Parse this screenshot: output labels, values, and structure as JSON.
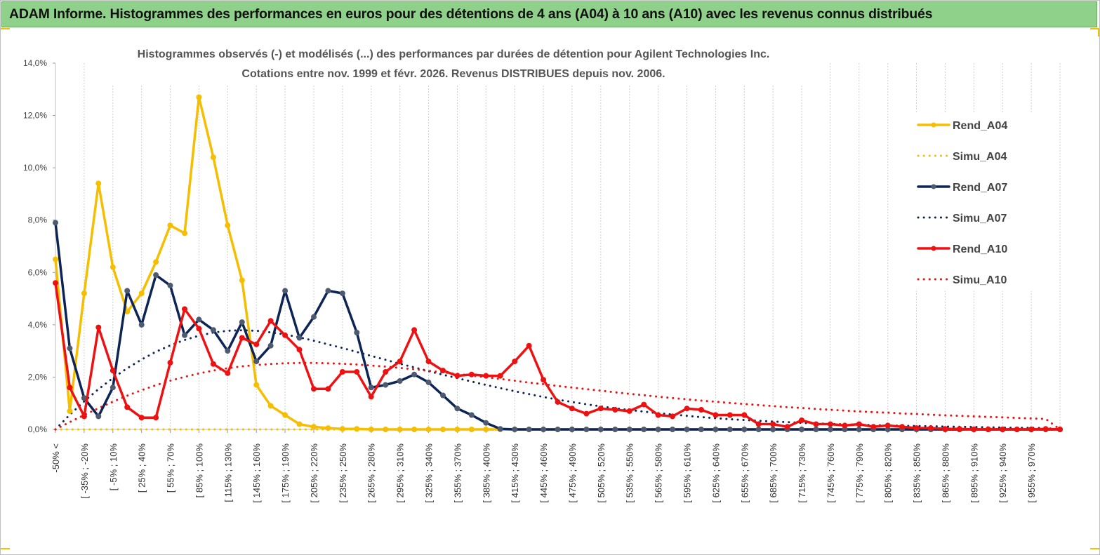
{
  "header": {
    "title": "ADAM Informe. Histogrammes des performances en euros pour des détentions de 4 ans (A04) à 10 ans (A10) avec les revenus connus distribués"
  },
  "colors": {
    "banner": "#8fd18a",
    "A04": "#f5be00",
    "A07": "#0d2456",
    "A10": "#ee1111",
    "marker07": "#4d5a70"
  },
  "chart_data": {
    "type": "line",
    "title_lines": [
      "Histogrammes observés (-) et modélisés (...) des performances par durées de détention pour Agilent Technologies Inc.",
      "Cotations entre nov. 1999 et févr. 2026. Revenus DISTRIBUES depuis nov. 2006."
    ],
    "xlabel": "",
    "ylabel": "",
    "ylim": [
      0,
      14
    ],
    "yticks": [
      "0,0%",
      "2,0%",
      "4,0%",
      "6,0%",
      "8,0%",
      "10,0%",
      "12,0%",
      "14,0%"
    ],
    "grid": true,
    "legend_position": "right",
    "x_labels": [
      "-50% <",
      "[ -35% ; -20%",
      "[ -5% ; 10%",
      "[ 25% ; 40%",
      "[ 55% ; 70%",
      "[ 85% ; 100%",
      "[ 115% ; 130%",
      "[ 145% ; 160%",
      "[ 175% ; 190%",
      "[ 205% ; 220%",
      "[ 235% ; 250%",
      "[ 265% ; 280%",
      "[ 295% ; 310%",
      "[ 325% ; 340%",
      "[ 355% ; 370%",
      "[ 385% ; 400%",
      "[ 415% ; 430%",
      "[ 445% ; 460%",
      "[ 475% ; 490%",
      "[ 505% ; 520%",
      "[ 535% ; 550%",
      "[ 565% ; 580%",
      "[ 595% ; 610%",
      "[ 625% ; 640%",
      "[ 655% ; 670%",
      "[ 685% ; 700%",
      "[ 715% ; 730%",
      "[ 745% ; 760%",
      "[ 775% ; 790%",
      "[ 805% ; 820%",
      "[ 835% ; 850%",
      "[ 865% ; 880%",
      "[ 895% ; 910%",
      "[ 925% ; 940%",
      "[ 955% ; 970%"
    ],
    "series": [
      {
        "name": "Rend_A04",
        "style": "solid",
        "color": "#f5be00",
        "values": [
          6.5,
          0.7,
          5.2,
          9.4,
          6.2,
          4.5,
          5.2,
          6.4,
          7.8,
          7.5,
          12.7,
          10.4,
          7.8,
          5.7,
          1.7,
          0.9,
          0.55,
          0.2,
          0.1,
          0.05,
          0.02,
          0.02,
          0,
          0,
          0,
          0,
          0,
          0,
          0,
          0,
          0,
          0,
          0,
          0,
          0,
          0,
          0,
          0,
          0,
          0,
          0,
          0,
          0,
          0,
          0,
          0,
          0,
          0,
          0,
          0,
          0,
          0,
          0,
          0,
          0,
          0,
          0,
          0,
          0,
          0,
          0,
          0,
          0,
          0,
          0,
          0,
          0,
          0,
          0,
          0,
          0
        ]
      },
      {
        "name": "Simu_A04",
        "style": "dotted",
        "color": "#f5be00",
        "values": [
          0,
          0,
          0,
          0,
          0,
          0,
          0,
          0,
          0,
          0,
          0,
          0,
          0,
          0,
          0,
          0,
          0,
          0,
          0,
          0,
          0,
          0,
          0,
          0,
          0,
          0,
          0,
          0,
          0,
          0,
          0,
          0,
          0,
          0,
          0,
          0,
          0,
          0,
          0,
          0,
          0,
          0,
          0,
          0,
          0,
          0,
          0,
          0,
          0,
          0,
          0,
          0,
          0,
          0,
          0,
          0,
          0,
          0,
          0,
          0,
          0,
          0,
          0,
          0,
          0,
          0,
          0,
          0,
          0,
          0,
          0
        ]
      },
      {
        "name": "Rend_A07",
        "style": "solid",
        "color": "#0d2456",
        "values": [
          7.9,
          3.1,
          1.2,
          0.5,
          1.6,
          5.3,
          4.0,
          5.9,
          5.5,
          3.6,
          4.2,
          3.8,
          3.0,
          4.1,
          2.6,
          3.2,
          5.3,
          3.5,
          4.3,
          5.3,
          5.2,
          3.7,
          1.6,
          1.7,
          1.85,
          2.1,
          1.8,
          1.3,
          0.8,
          0.55,
          0.25,
          0.02,
          0,
          0,
          0,
          0,
          0,
          0,
          0,
          0,
          0,
          0,
          0,
          0,
          0,
          0,
          0,
          0,
          0,
          0,
          0,
          0,
          0,
          0,
          0,
          0,
          0,
          0,
          0,
          0,
          0,
          0,
          0,
          0,
          0,
          0,
          0,
          0,
          0,
          0,
          0
        ]
      },
      {
        "name": "Simu_A07",
        "style": "dotted",
        "color": "#0d2456",
        "values": [
          0,
          0.56,
          1.07,
          1.54,
          1.96,
          2.34,
          2.67,
          2.97,
          3.21,
          3.42,
          3.58,
          3.7,
          3.77,
          3.79,
          3.77,
          3.71,
          3.63,
          3.52,
          3.39,
          3.25,
          3.11,
          2.96,
          2.81,
          2.66,
          2.51,
          2.37,
          2.23,
          2.09,
          1.96,
          1.83,
          1.7,
          1.58,
          1.46,
          1.35,
          1.24,
          1.14,
          1.05,
          0.96,
          0.88,
          0.81,
          0.74,
          0.68,
          0.62,
          0.57,
          0.52,
          0.47,
          0.43,
          0.39,
          0.36,
          0.33,
          0.3,
          0.28,
          0.25,
          0.23,
          0.21,
          0.19,
          0.18,
          0.16,
          0.15,
          0.14,
          0.13,
          0.12,
          0.11,
          0.1,
          0.09,
          0.08,
          0.07,
          0.06,
          0.06,
          0.05,
          0
        ]
      },
      {
        "name": "Rend_A10",
        "style": "solid",
        "color": "#ee1111",
        "values": [
          5.6,
          1.6,
          0.5,
          3.9,
          2.25,
          0.85,
          0.45,
          0.45,
          2.55,
          4.6,
          3.85,
          2.5,
          2.15,
          3.5,
          3.25,
          4.15,
          3.6,
          3.05,
          1.55,
          1.55,
          2.2,
          2.2,
          1.25,
          2.2,
          2.6,
          3.8,
          2.6,
          2.25,
          2.05,
          2.1,
          2.05,
          2.05,
          2.6,
          3.2,
          1.9,
          1.05,
          0.8,
          0.6,
          0.8,
          0.75,
          0.7,
          0.95,
          0.55,
          0.5,
          0.8,
          0.75,
          0.55,
          0.55,
          0.55,
          0.2,
          0.2,
          0.1,
          0.35,
          0.2,
          0.2,
          0.15,
          0.2,
          0.1,
          0.15,
          0.1,
          0.05,
          0.05,
          0.02,
          0.02,
          0,
          0,
          0,
          0,
          0,
          0.02,
          0
        ]
      },
      {
        "name": "Simu_A10",
        "style": "dotted",
        "color": "#ee1111",
        "values": [
          0,
          0.28,
          0.55,
          0.81,
          1.06,
          1.29,
          1.5,
          1.69,
          1.86,
          2.01,
          2.14,
          2.25,
          2.34,
          2.41,
          2.46,
          2.5,
          2.53,
          2.54,
          2.54,
          2.53,
          2.51,
          2.48,
          2.44,
          2.4,
          2.35,
          2.3,
          2.24,
          2.18,
          2.12,
          2.06,
          1.99,
          1.93,
          1.86,
          1.79,
          1.73,
          1.66,
          1.6,
          1.54,
          1.48,
          1.42,
          1.36,
          1.31,
          1.25,
          1.2,
          1.15,
          1.1,
          1.06,
          1.01,
          0.97,
          0.93,
          0.89,
          0.85,
          0.82,
          0.78,
          0.75,
          0.72,
          0.69,
          0.66,
          0.64,
          0.61,
          0.59,
          0.56,
          0.54,
          0.52,
          0.5,
          0.48,
          0.46,
          0.44,
          0.42,
          0.4,
          0
        ]
      }
    ]
  }
}
